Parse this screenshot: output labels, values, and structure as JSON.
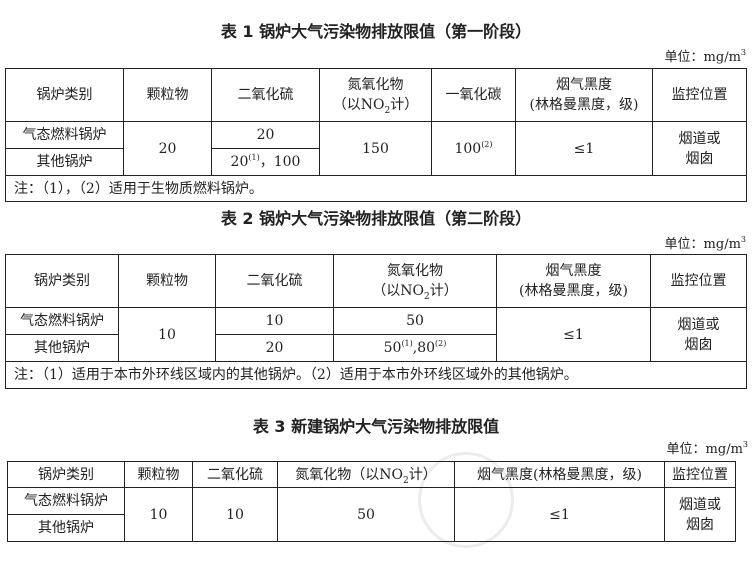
{
  "headers_common": {
    "type": "锅炉类别",
    "pm": "颗粒物",
    "so2": "二氧化硫",
    "nox_1": "氮氧化物",
    "nox_2a": "（以NO",
    "nox_sub": "2",
    "nox_2b": "计）",
    "co": "一氧化碳",
    "smoke_1": "烟气黑度",
    "smoke_2": "(林格曼黑度，级)",
    "monitor": "监控位置"
  },
  "table1": {
    "title": "表 1 锅炉大气污染物排放限值（第一阶段）",
    "unit": "单位：mg/m",
    "unit_sup": "3",
    "rows": {
      "gas": "气态燃料锅炉",
      "other": "其他锅炉"
    },
    "pm": "20",
    "so2_gas": "20",
    "so2_other_a": "20",
    "so2_other_sup": "(1)",
    "so2_other_b": "，100",
    "nox": "150",
    "co": "100",
    "co_sup": "(2)",
    "smoke": "≤1",
    "monitor_1": "烟道或",
    "monitor_2": "烟囱",
    "note": "注：（1），（2）适用于生物质燃料锅炉。"
  },
  "table2": {
    "title": "表 2 锅炉大气污染物排放限值（第二阶段）",
    "unit": "单位：mg/m",
    "unit_sup": "3",
    "rows": {
      "gas": "气态燃料锅炉",
      "other": "其他锅炉"
    },
    "pm": "10",
    "so2_gas": "10",
    "so2_other": "20",
    "nox_gas": "50",
    "nox_other_a": "50",
    "nox_other_sup1": "(1)",
    "nox_other_b": ",80",
    "nox_other_sup2": "(2)",
    "smoke": "≤1",
    "monitor_1": "烟道或",
    "monitor_2": "烟囱",
    "note": "注：（1）适用于本市外环线区域内的其他锅炉。（2）适用于本市外环线区域外的其他锅炉。"
  },
  "table3": {
    "title": "表 3 新建锅炉大气污染物排放限值",
    "unit": "单位：mg/m",
    "unit_sup": "3",
    "headers": {
      "nox_a": "氮氧化物（以NO",
      "nox_sub": "2",
      "nox_b": "计）",
      "smoke": "烟气黑度(林格曼黑度，级)"
    },
    "rows": {
      "gas": "气态燃料锅炉",
      "other": "其他锅炉"
    },
    "pm": "10",
    "so2": "10",
    "nox": "50",
    "smoke": "≤1",
    "monitor_1": "烟道或",
    "monitor_2": "烟囱"
  },
  "watermark": "郑州晚报"
}
